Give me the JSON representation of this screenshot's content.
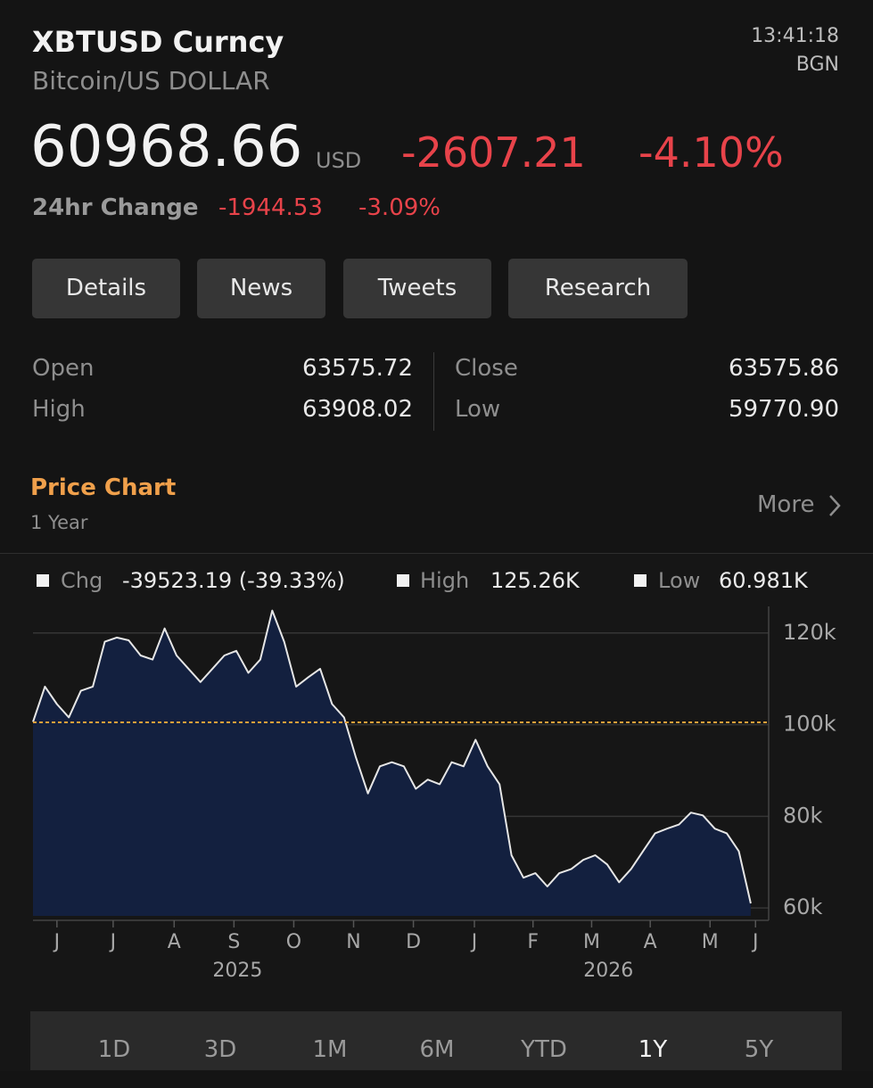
{
  "header": {
    "symbol": "XBTUSD Curncy",
    "name": "Bitcoin/US DOLLAR",
    "time": "13:41:18",
    "source": "BGN"
  },
  "quote": {
    "price": "60968.66",
    "currency": "USD",
    "change": "-2607.21",
    "change_pct": "-4.10%"
  },
  "change_24h": {
    "label": "24hr Change",
    "change": "-1944.53",
    "change_pct": "-3.09%"
  },
  "tabs": [
    "Details",
    "News",
    "Tweets",
    "Research"
  ],
  "stats": {
    "left": [
      {
        "label": "Open",
        "value": "63575.72"
      },
      {
        "label": "High",
        "value": "63908.02"
      }
    ],
    "right": [
      {
        "label": "Close",
        "value": "63575.86"
      },
      {
        "label": "Low",
        "value": "59770.90"
      }
    ]
  },
  "section": {
    "title": "Price Chart",
    "subtitle": "1 Year",
    "more": "More"
  },
  "chart_data": {
    "type": "area",
    "legend": [
      {
        "name": "Chg",
        "value": "-39523.19 (-39.33%)"
      },
      {
        "name": "High",
        "value": "125.26K"
      },
      {
        "name": "Low",
        "value": "60.981K"
      }
    ],
    "values": [
      100600,
      108300,
      104500,
      101600,
      107400,
      108300,
      118100,
      119000,
      118400,
      115100,
      114200,
      121000,
      115100,
      112200,
      109300,
      112200,
      115100,
      116100,
      111300,
      114200,
      124900,
      118100,
      108300,
      110300,
      112200,
      104500,
      101600,
      92800,
      85000,
      90900,
      91800,
      90900,
      86000,
      88000,
      87000,
      91800,
      90900,
      96700,
      90900,
      87000,
      71500,
      66600,
      67600,
      64700,
      67600,
      68500,
      70500,
      71500,
      69500,
      65600,
      68500,
      72400,
      76300,
      77300,
      78200,
      80800,
      80200,
      77300,
      76300,
      72400,
      61000
    ],
    "color": "#e6e6e6",
    "fill": "#13203f",
    "xlim": [
      0,
      61.5
    ],
    "xticks": [
      {
        "value": 2.0,
        "label": "J"
      },
      {
        "value": 6.7,
        "label": "J"
      },
      {
        "value": 11.8,
        "label": "A"
      },
      {
        "value": 16.8,
        "label": "S"
      },
      {
        "value": 21.8,
        "label": "O"
      },
      {
        "value": 26.8,
        "label": "N"
      },
      {
        "value": 31.8,
        "label": "D"
      },
      {
        "value": 36.9,
        "label": "J"
      },
      {
        "value": 41.8,
        "label": "F"
      },
      {
        "value": 46.7,
        "label": "M"
      },
      {
        "value": 51.6,
        "label": "A"
      },
      {
        "value": 56.6,
        "label": "M"
      },
      {
        "value": 60.4,
        "label": "J"
      }
    ],
    "year_labels": [
      {
        "value": 17.1,
        "label": "2025"
      },
      {
        "value": 48.1,
        "label": "2026"
      }
    ],
    "ylim": [
      57300,
      125800
    ],
    "yticks": [
      {
        "value": 60000,
        "label": "60k"
      },
      {
        "value": 80000,
        "label": "80k"
      },
      {
        "value": 100000,
        "label": "100k"
      },
      {
        "value": 120000,
        "label": "120k"
      }
    ],
    "grid": true,
    "reference_line": {
      "value": 100491.85,
      "color": "#e8a03a"
    }
  },
  "ranges": {
    "options": [
      "1D",
      "3D",
      "1M",
      "6M",
      "YTD",
      "1Y",
      "5Y"
    ],
    "selected": "1Y"
  }
}
